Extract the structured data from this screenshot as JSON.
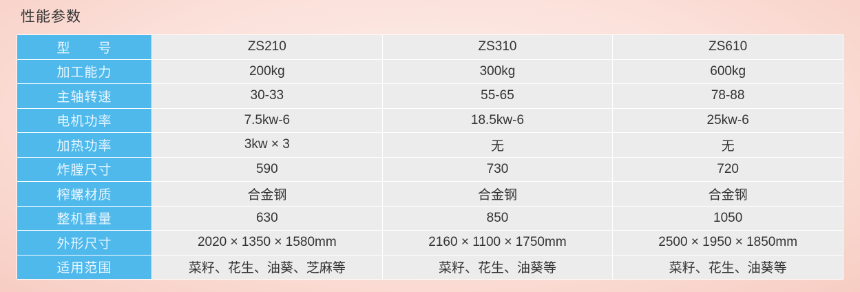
{
  "title": "性能参数",
  "rows": [
    {
      "label": "型　　号",
      "values": [
        "ZS210",
        "ZS310",
        "ZS610"
      ]
    },
    {
      "label": "加工能力",
      "values": [
        "200kg",
        "300kg",
        "600kg"
      ]
    },
    {
      "label": "主轴转速",
      "values": [
        "30-33",
        "55-65",
        "78-88"
      ]
    },
    {
      "label": "电机功率",
      "values": [
        "7.5kw-6",
        "18.5kw-6",
        "25kw-6"
      ]
    },
    {
      "label": "加热功率",
      "values": [
        "3kw × 3",
        "无",
        "无"
      ]
    },
    {
      "label": "炸膛尺寸",
      "values": [
        "590",
        "730",
        "720"
      ]
    },
    {
      "label": "榨螺材质",
      "values": [
        "合金钢",
        "合金钢",
        "合金钢"
      ]
    },
    {
      "label": "整机重量",
      "values": [
        "630",
        "850",
        "1050"
      ]
    },
    {
      "label": "外形尺寸",
      "values": [
        "2020 × 1350 × 1580mm",
        "2160 × 1100 × 1750mm",
        "2500 × 1950 × 1850mm"
      ]
    },
    {
      "label": "适用范围",
      "values": [
        "菜籽、花生、油葵、芝麻等",
        "菜籽、花生、油葵等",
        "菜籽、花生、油葵等"
      ]
    }
  ],
  "colors": {
    "header": "#4fb9ec",
    "cell": "#ececec"
  }
}
